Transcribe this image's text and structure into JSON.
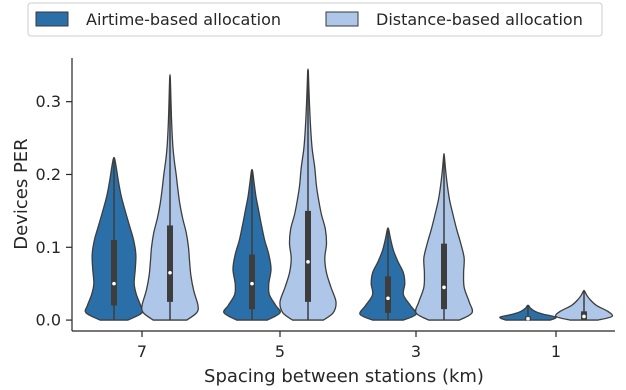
{
  "chart_data": {
    "type": "violin",
    "title": "",
    "xlabel": "Spacing between stations (km)",
    "ylabel": "Devices PER",
    "ylim": [
      -0.015,
      0.36
    ],
    "yticks": [
      "0.0",
      "0.1",
      "0.2",
      "0.3"
    ],
    "ytick_values": [
      0.0,
      0.1,
      0.2,
      0.3
    ],
    "categories": [
      "7",
      "5",
      "3",
      "1"
    ],
    "legend_position": "top",
    "series": [
      {
        "name": "Airtime-based allocation",
        "color": "#2a6fa8",
        "violins": [
          {
            "min": 0.0,
            "max": 0.222,
            "q1": 0.02,
            "median": 0.05,
            "q3": 0.11,
            "profile": [
              [
                0.0,
                0.5
              ],
              [
                0.01,
                1.0
              ],
              [
                0.02,
                0.95
              ],
              [
                0.035,
                0.8
              ],
              [
                0.05,
                0.72
              ],
              [
                0.07,
                0.76
              ],
              [
                0.09,
                0.78
              ],
              [
                0.11,
                0.7
              ],
              [
                0.13,
                0.55
              ],
              [
                0.15,
                0.4
              ],
              [
                0.17,
                0.26
              ],
              [
                0.19,
                0.16
              ],
              [
                0.21,
                0.08
              ],
              [
                0.222,
                0.02
              ]
            ]
          },
          {
            "min": 0.0,
            "max": 0.205,
            "q1": 0.015,
            "median": 0.05,
            "q3": 0.09,
            "profile": [
              [
                0.0,
                0.55
              ],
              [
                0.01,
                1.0
              ],
              [
                0.02,
                0.85
              ],
              [
                0.035,
                0.62
              ],
              [
                0.05,
                0.6
              ],
              [
                0.07,
                0.68
              ],
              [
                0.09,
                0.6
              ],
              [
                0.11,
                0.45
              ],
              [
                0.13,
                0.34
              ],
              [
                0.15,
                0.24
              ],
              [
                0.17,
                0.14
              ],
              [
                0.19,
                0.07
              ],
              [
                0.205,
                0.02
              ]
            ]
          },
          {
            "min": 0.0,
            "max": 0.125,
            "q1": 0.01,
            "median": 0.03,
            "q3": 0.06,
            "profile": [
              [
                0.0,
                0.55
              ],
              [
                0.008,
                1.0
              ],
              [
                0.02,
                0.8
              ],
              [
                0.035,
                0.55
              ],
              [
                0.05,
                0.6
              ],
              [
                0.065,
                0.55
              ],
              [
                0.08,
                0.36
              ],
              [
                0.095,
                0.2
              ],
              [
                0.11,
                0.1
              ],
              [
                0.125,
                0.02
              ]
            ]
          },
          {
            "min": 0.0,
            "max": 0.02,
            "q1": 0.0,
            "median": 0.002,
            "q3": 0.005,
            "profile": [
              [
                0.0,
                0.8
              ],
              [
                0.004,
                1.0
              ],
              [
                0.008,
                0.55
              ],
              [
                0.012,
                0.25
              ],
              [
                0.016,
                0.1
              ],
              [
                0.02,
                0.02
              ]
            ]
          }
        ]
      },
      {
        "name": "Distance-based allocation",
        "color": "#aec7e8",
        "violins": [
          {
            "min": 0.0,
            "max": 0.333,
            "q1": 0.025,
            "median": 0.065,
            "q3": 0.13,
            "profile": [
              [
                0.0,
                0.6
              ],
              [
                0.01,
                0.95
              ],
              [
                0.02,
                1.0
              ],
              [
                0.04,
                0.85
              ],
              [
                0.06,
                0.75
              ],
              [
                0.08,
                0.7
              ],
              [
                0.1,
                0.66
              ],
              [
                0.12,
                0.58
              ],
              [
                0.14,
                0.45
              ],
              [
                0.16,
                0.35
              ],
              [
                0.18,
                0.28
              ],
              [
                0.2,
                0.22
              ],
              [
                0.22,
                0.15
              ],
              [
                0.24,
                0.1
              ],
              [
                0.27,
                0.06
              ],
              [
                0.3,
                0.035
              ],
              [
                0.333,
                0.01
              ]
            ]
          },
          {
            "min": 0.0,
            "max": 0.342,
            "q1": 0.025,
            "median": 0.08,
            "q3": 0.15,
            "profile": [
              [
                0.0,
                0.55
              ],
              [
                0.01,
                0.9
              ],
              [
                0.025,
                1.0
              ],
              [
                0.045,
                0.82
              ],
              [
                0.065,
                0.66
              ],
              [
                0.085,
                0.6
              ],
              [
                0.105,
                0.66
              ],
              [
                0.125,
                0.62
              ],
              [
                0.145,
                0.48
              ],
              [
                0.165,
                0.38
              ],
              [
                0.185,
                0.3
              ],
              [
                0.21,
                0.24
              ],
              [
                0.235,
                0.15
              ],
              [
                0.26,
                0.1
              ],
              [
                0.29,
                0.06
              ],
              [
                0.32,
                0.03
              ],
              [
                0.342,
                0.01
              ]
            ]
          },
          {
            "min": 0.0,
            "max": 0.226,
            "q1": 0.015,
            "median": 0.045,
            "q3": 0.105,
            "profile": [
              [
                0.0,
                0.55
              ],
              [
                0.01,
                1.0
              ],
              [
                0.025,
                0.9
              ],
              [
                0.045,
                0.72
              ],
              [
                0.065,
                0.7
              ],
              [
                0.085,
                0.72
              ],
              [
                0.105,
                0.6
              ],
              [
                0.125,
                0.45
              ],
              [
                0.145,
                0.32
              ],
              [
                0.165,
                0.2
              ],
              [
                0.185,
                0.12
              ],
              [
                0.205,
                0.06
              ],
              [
                0.226,
                0.01
              ]
            ]
          },
          {
            "min": 0.0,
            "max": 0.04,
            "q1": 0.0,
            "median": 0.005,
            "q3": 0.012,
            "profile": [
              [
                0.0,
                0.5
              ],
              [
                0.005,
                1.0
              ],
              [
                0.012,
                0.85
              ],
              [
                0.02,
                0.45
              ],
              [
                0.028,
                0.22
              ],
              [
                0.034,
                0.1
              ],
              [
                0.04,
                0.02
              ]
            ]
          }
        ]
      }
    ]
  }
}
